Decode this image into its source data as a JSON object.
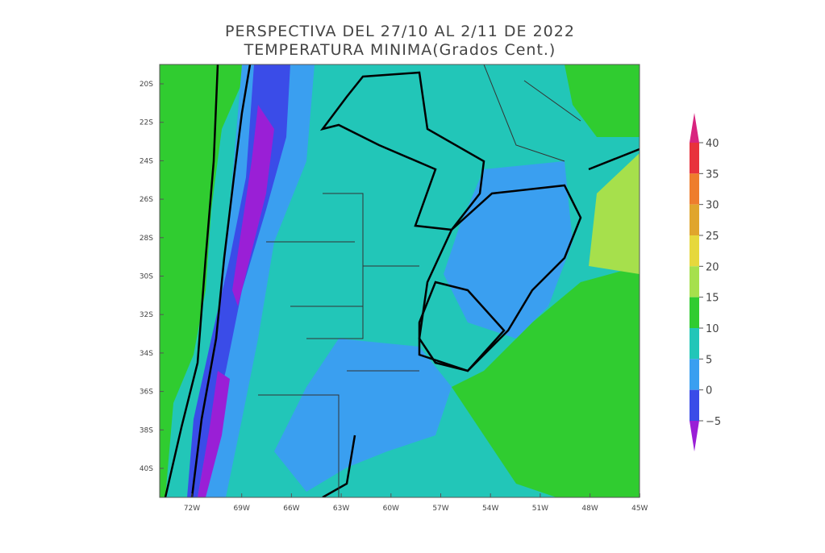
{
  "title": [
    "PERSPECTIVA DEL 27/10 AL 2/11 DE 2022",
    "TEMPERATURA MINIMA(Grados Cent.)"
  ],
  "lat_labels": [
    "20S",
    "22S",
    "24S",
    "26S",
    "28S",
    "30S",
    "32S",
    "34S",
    "36S",
    "38S",
    "40S"
  ],
  "lon_labels": [
    "72W",
    "69W",
    "66W",
    "63W",
    "60W",
    "57W",
    "54W",
    "51W",
    "48W",
    "45W"
  ],
  "colorbar": {
    "labels": [
      "40",
      "35",
      "30",
      "25",
      "20",
      "15",
      "10",
      "5",
      "0",
      "−5"
    ],
    "colors": [
      "#d8247f",
      "#e8323c",
      "#ee7d2c",
      "#e0a52c",
      "#e6d83c",
      "#a6e04c",
      "#30cc30",
      "#22c6b8",
      "#3a9ff0",
      "#3a4ce8",
      "#9a1fd6"
    ]
  }
}
